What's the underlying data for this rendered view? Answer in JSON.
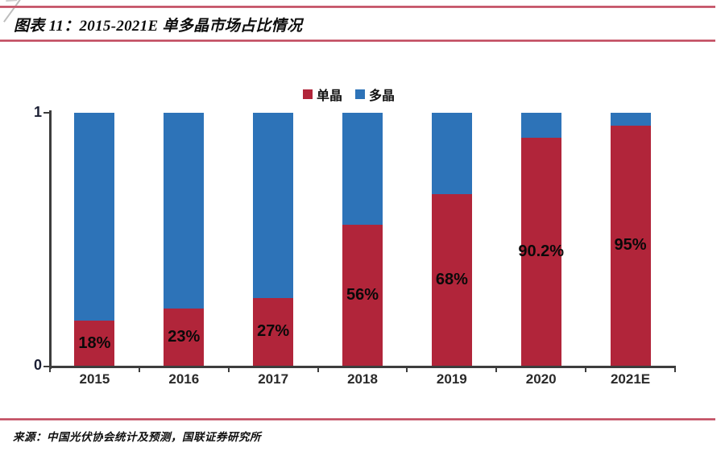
{
  "header": {
    "title": "图表 11：2015-2021E 单多晶市场占比情况"
  },
  "legend": [
    {
      "label": "单晶",
      "color": "#b1253a"
    },
    {
      "label": "多晶",
      "color": "#2d73b8"
    }
  ],
  "chart_data": {
    "type": "bar",
    "stacked": true,
    "title": "图表 11：2015-2021E 单多晶市场占比情况",
    "categories": [
      "2015",
      "2016",
      "2017",
      "2018",
      "2019",
      "2020",
      "2021E"
    ],
    "series": [
      {
        "name": "单晶",
        "color": "#b1253a",
        "values": [
          0.18,
          0.23,
          0.27,
          0.56,
          0.68,
          0.902,
          0.95
        ],
        "labels": [
          "18%",
          "23%",
          "27%",
          "56%",
          "68%",
          "90.2%",
          "95%"
        ]
      },
      {
        "name": "多晶",
        "color": "#2d73b8",
        "values": [
          0.82,
          0.77,
          0.73,
          0.44,
          0.32,
          0.098,
          0.05
        ],
        "labels": [
          "",
          "",
          "",
          "",
          "",
          "",
          ""
        ]
      }
    ],
    "xlabel": "",
    "ylabel": "",
    "ylim": [
      0,
      1
    ],
    "yticks": [
      "0",
      "1"
    ],
    "grid": false,
    "legend_position": "top-center"
  },
  "footer": {
    "source": "来源：中国光伏协会统计及预测，国联证券研究所"
  },
  "colors": {
    "mono_red": "#b1253a",
    "multi_blue": "#2d73b8",
    "rule_red": "#b93950",
    "axis": "#3d3d3d"
  }
}
